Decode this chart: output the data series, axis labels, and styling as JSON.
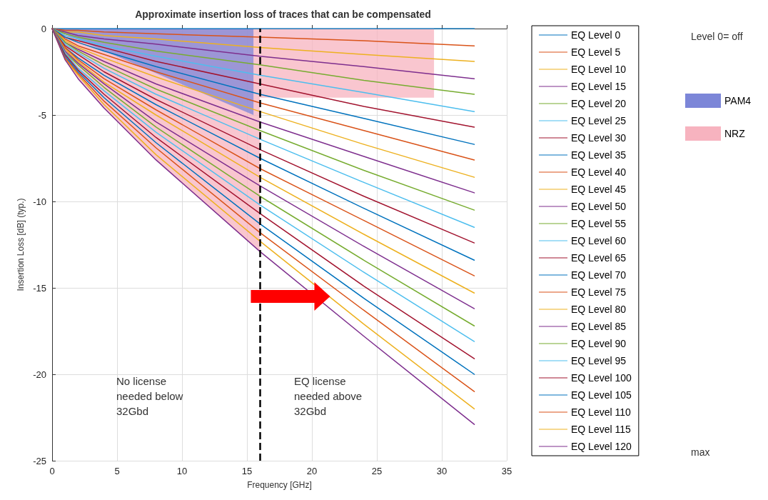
{
  "chart_data": {
    "type": "line",
    "title": "Approximate insertion loss of traces that can be compensated",
    "xlabel": "Frequency [GHz]",
    "ylabel": "Insertion Loss [dB] (typ.)",
    "x": [
      0,
      1,
      2,
      4,
      8,
      16,
      24,
      32.5
    ],
    "xlim": [
      0,
      35
    ],
    "xticks": [
      0,
      5,
      10,
      15,
      20,
      25,
      30,
      35
    ],
    "ylim": [
      -25,
      0
    ],
    "yticks": [
      -25,
      -20,
      -15,
      -10,
      -5,
      0
    ],
    "grid": true,
    "legend": "right",
    "marker": "none",
    "line_style": "solid",
    "series": [
      {
        "name": "NRZ",
        "type": "area",
        "color": "#f7b3bf",
        "x": [
          0,
          1,
          2,
          4,
          8,
          16,
          16,
          29.4
        ],
        "values": [
          0,
          -1.8,
          -2.9,
          -4.6,
          -7.6,
          -12.9,
          -4.0,
          -4.0
        ]
      },
      {
        "name": "PAM4",
        "type": "area",
        "color": "#7c86d8",
        "x": [
          0,
          15.5
        ],
        "values": [
          0,
          -5.0
        ]
      },
      {
        "name": "EQ Level 0",
        "color": "#0072bd",
        "values": [
          0,
          0,
          0,
          0,
          0,
          0,
          0,
          0
        ]
      },
      {
        "name": "EQ Level 5",
        "color": "#d95319",
        "values": [
          0,
          -0.1,
          -0.1,
          -0.2,
          -0.3,
          -0.5,
          -0.7,
          -1.0
        ]
      },
      {
        "name": "EQ Level 10",
        "color": "#edb120",
        "values": [
          0,
          -0.2,
          -0.2,
          -0.4,
          -0.6,
          -1.1,
          -1.5,
          -1.9
        ]
      },
      {
        "name": "EQ Level 15",
        "color": "#7e2f8e",
        "values": [
          0,
          -0.2,
          -0.4,
          -0.6,
          -0.9,
          -1.6,
          -2.2,
          -2.9
        ]
      },
      {
        "name": "EQ Level 20",
        "color": "#77ac30",
        "values": [
          0,
          -0.3,
          -0.5,
          -0.8,
          -1.3,
          -2.1,
          -3.0,
          -3.8
        ]
      },
      {
        "name": "EQ Level 25",
        "color": "#4dbeee",
        "values": [
          0,
          -0.4,
          -0.6,
          -1.0,
          -1.6,
          -2.7,
          -3.7,
          -4.8
        ]
      },
      {
        "name": "EQ Level 30",
        "color": "#a2142f",
        "values": [
          0,
          -0.5,
          -0.7,
          -1.1,
          -1.9,
          -3.2,
          -4.5,
          -5.7
        ]
      },
      {
        "name": "EQ Level 35",
        "color": "#0072bd",
        "values": [
          0,
          -0.5,
          -0.8,
          -1.3,
          -2.2,
          -3.8,
          -5.2,
          -6.7
        ]
      },
      {
        "name": "EQ Level 40",
        "color": "#d95319",
        "values": [
          0,
          -0.6,
          -1.0,
          -1.5,
          -2.5,
          -4.3,
          -5.9,
          -7.6
        ]
      },
      {
        "name": "EQ Level 45",
        "color": "#edb120",
        "values": [
          0,
          -0.7,
          -1.1,
          -1.7,
          -2.8,
          -4.8,
          -6.7,
          -8.6
        ]
      },
      {
        "name": "EQ Level 50",
        "color": "#7e2f8e",
        "values": [
          0,
          -0.8,
          -1.2,
          -1.9,
          -3.2,
          -5.4,
          -7.4,
          -9.5
        ]
      },
      {
        "name": "EQ Level 55",
        "color": "#77ac30",
        "values": [
          0,
          -0.8,
          -1.3,
          -2.1,
          -3.5,
          -5.9,
          -8.2,
          -10.5
        ]
      },
      {
        "name": "EQ Level 60",
        "color": "#4dbeee",
        "values": [
          0,
          -0.9,
          -1.4,
          -2.3,
          -3.8,
          -6.4,
          -8.9,
          -11.5
        ]
      },
      {
        "name": "EQ Level 65",
        "color": "#a2142f",
        "values": [
          0,
          -1.0,
          -1.5,
          -2.5,
          -4.1,
          -7.0,
          -9.7,
          -12.4
        ]
      },
      {
        "name": "EQ Level 70",
        "color": "#0072bd",
        "values": [
          0,
          -1.1,
          -1.7,
          -2.7,
          -4.4,
          -7.5,
          -10.4,
          -13.4
        ]
      },
      {
        "name": "EQ Level 75",
        "color": "#d95319",
        "values": [
          0,
          -1.1,
          -1.8,
          -2.9,
          -4.7,
          -8.1,
          -11.1,
          -14.3
        ]
      },
      {
        "name": "EQ Level 80",
        "color": "#edb120",
        "values": [
          0,
          -1.2,
          -1.9,
          -3.1,
          -5.0,
          -8.6,
          -11.9,
          -15.3
        ]
      },
      {
        "name": "EQ Level 85",
        "color": "#7e2f8e",
        "values": [
          0,
          -1.3,
          -2.0,
          -3.2,
          -5.4,
          -9.1,
          -12.6,
          -16.2
        ]
      },
      {
        "name": "EQ Level 90",
        "color": "#77ac30",
        "values": [
          0,
          -1.4,
          -2.1,
          -3.4,
          -5.7,
          -9.7,
          -13.4,
          -17.2
        ]
      },
      {
        "name": "EQ Level 95",
        "color": "#4dbeee",
        "values": [
          0,
          -1.4,
          -2.3,
          -3.6,
          -6.0,
          -10.2,
          -14.1,
          -18.1
        ]
      },
      {
        "name": "EQ Level 100",
        "color": "#a2142f",
        "values": [
          0,
          -1.5,
          -2.4,
          -3.8,
          -6.3,
          -10.7,
          -14.9,
          -19.1
        ]
      },
      {
        "name": "EQ Level 105",
        "color": "#0072bd",
        "values": [
          0,
          -1.6,
          -2.5,
          -4.0,
          -6.6,
          -11.3,
          -15.6,
          -20.0
        ]
      },
      {
        "name": "EQ Level 110",
        "color": "#d95319",
        "values": [
          0,
          -1.7,
          -2.6,
          -4.2,
          -6.9,
          -11.8,
          -16.3,
          -21.0
        ]
      },
      {
        "name": "EQ Level 115",
        "color": "#edb120",
        "values": [
          0,
          -1.8,
          -2.7,
          -4.4,
          -7.3,
          -12.3,
          -17.1,
          -22.0
        ]
      },
      {
        "name": "EQ Level 120",
        "color": "#7e2f8e",
        "values": [
          0,
          -1.8,
          -2.9,
          -4.6,
          -7.6,
          -12.9,
          -17.8,
          -22.9
        ]
      }
    ],
    "ref_lines": [
      {
        "axis": "x",
        "value": 16,
        "color": "#000000",
        "line_style": "dashed"
      }
    ],
    "annotations": [
      "Level 0= off",
      "max",
      "No license\nneeded below\n32Gbd",
      "EQ license\nneeded above\n32Gbd"
    ]
  }
}
